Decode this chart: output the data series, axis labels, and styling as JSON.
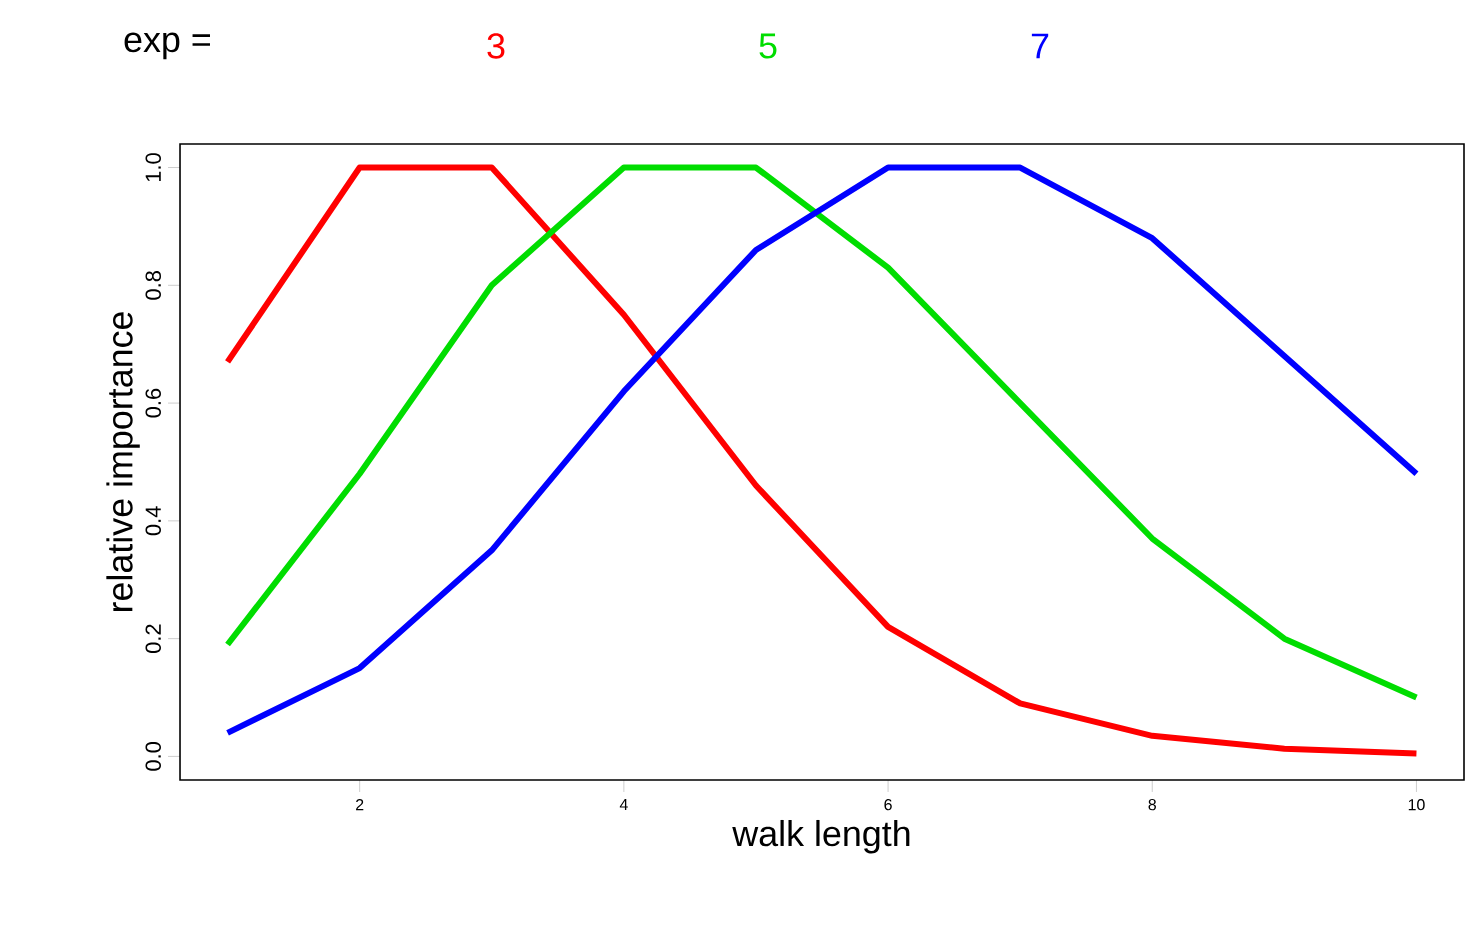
{
  "chart_data": {
    "type": "line",
    "xlabel": "walk length",
    "ylabel": "relative importance",
    "legend_title": "exp =",
    "legend": "top",
    "marker": "none",
    "line_style": "solid",
    "x": [
      1,
      2,
      3,
      4,
      5,
      6,
      7,
      8,
      9,
      10
    ],
    "xlim": [
      0.64,
      10.36
    ],
    "xticks": [
      2,
      4,
      6,
      8,
      10
    ],
    "ylim": [
      -0.04,
      1.04
    ],
    "yticks": [
      {
        "value": 0,
        "label": "0.0"
      },
      {
        "value": 0.2,
        "label": "0.2"
      },
      {
        "value": 0.4,
        "label": "0.4"
      },
      {
        "value": 0.6,
        "label": "0.6"
      },
      {
        "value": 0.8,
        "label": "0.8"
      },
      {
        "value": 1,
        "label": "1.0"
      }
    ],
    "series": [
      {
        "name": "3",
        "color": "#ff0000",
        "values": [
          0.67,
          1.0,
          1.0,
          0.75,
          0.46,
          0.22,
          0.09,
          0.035,
          0.013,
          0.005
        ]
      },
      {
        "name": "5",
        "color": "#00dd00",
        "values": [
          0.19,
          0.48,
          0.8,
          1.0,
          1.0,
          0.83,
          0.6,
          0.37,
          0.2,
          0.1
        ]
      },
      {
        "name": "7",
        "color": "#0000ff",
        "values": [
          0.04,
          0.15,
          0.35,
          0.62,
          0.86,
          1.0,
          1.0,
          0.88,
          0.68,
          0.48
        ]
      }
    ]
  }
}
